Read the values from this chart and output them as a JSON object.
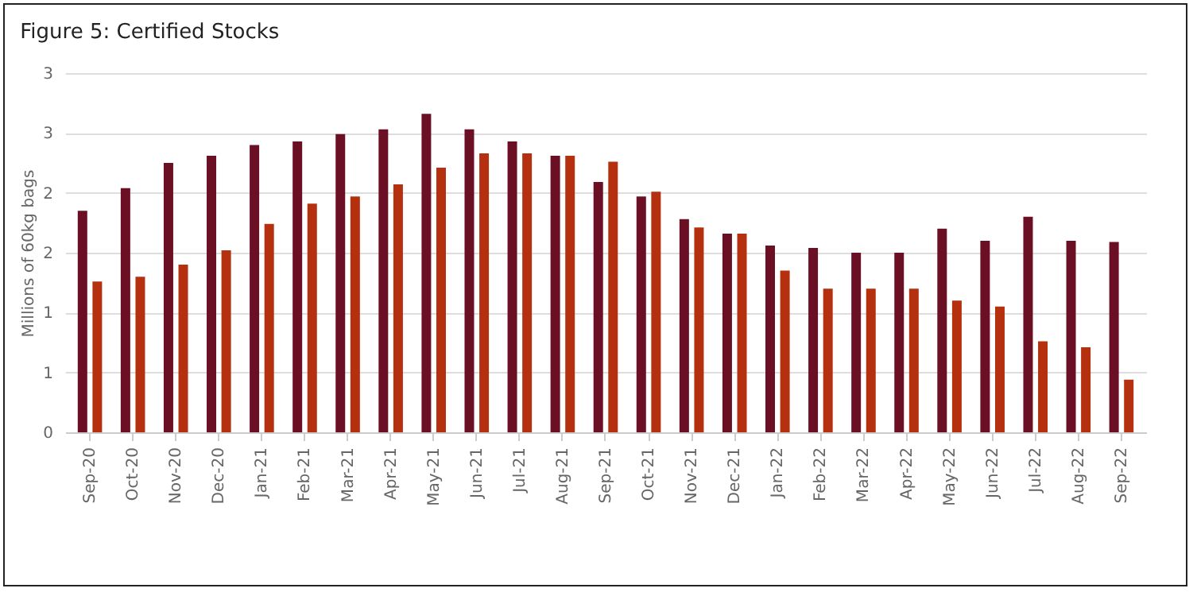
{
  "chart_data": {
    "type": "bar",
    "title": "Figure 5: Certified Stocks",
    "ylabel": "Millions of 60kg bags",
    "categories": [
      "Sep-20",
      "Oct-20",
      "Nov-20",
      "Dec-20",
      "Jan-21",
      "Feb-21",
      "Mar-21",
      "Apr-21",
      "May-21",
      "Jun-21",
      "Jul-21",
      "Aug-21",
      "Sep-21",
      "Oct-21",
      "Nov-21",
      "Dec-21",
      "Jan-22",
      "Feb-22",
      "Mar-22",
      "Apr-22",
      "May-22",
      "Jun-22",
      "Jul-22",
      "Aug-22",
      "Sep-22"
    ],
    "series": [
      {
        "color": "#6b0f24",
        "values": [
          1.85,
          2.04,
          2.25,
          2.31,
          2.4,
          2.43,
          2.49,
          2.53,
          2.66,
          2.53,
          2.43,
          2.31,
          2.09,
          1.97,
          1.78,
          1.66,
          1.56,
          1.54,
          1.5,
          1.5,
          1.7,
          1.6,
          1.8,
          1.6,
          1.59
        ]
      },
      {
        "color": "#b5300f",
        "values": [
          1.26,
          1.3,
          1.4,
          1.52,
          1.74,
          1.91,
          1.97,
          2.07,
          2.21,
          2.33,
          2.33,
          2.31,
          2.26,
          2.01,
          1.71,
          1.66,
          1.35,
          1.2,
          1.2,
          1.2,
          1.1,
          1.05,
          0.76,
          0.71,
          0.44
        ]
      }
    ],
    "ylim": [
      0,
      3
    ],
    "yticks": [
      0,
      {
        "value": 0.5,
        "label": "1"
      },
      1,
      {
        "value": 1.5,
        "label": "2"
      },
      2,
      {
        "value": 2.5,
        "label": "3"
      },
      3
    ],
    "grid": "y"
  }
}
